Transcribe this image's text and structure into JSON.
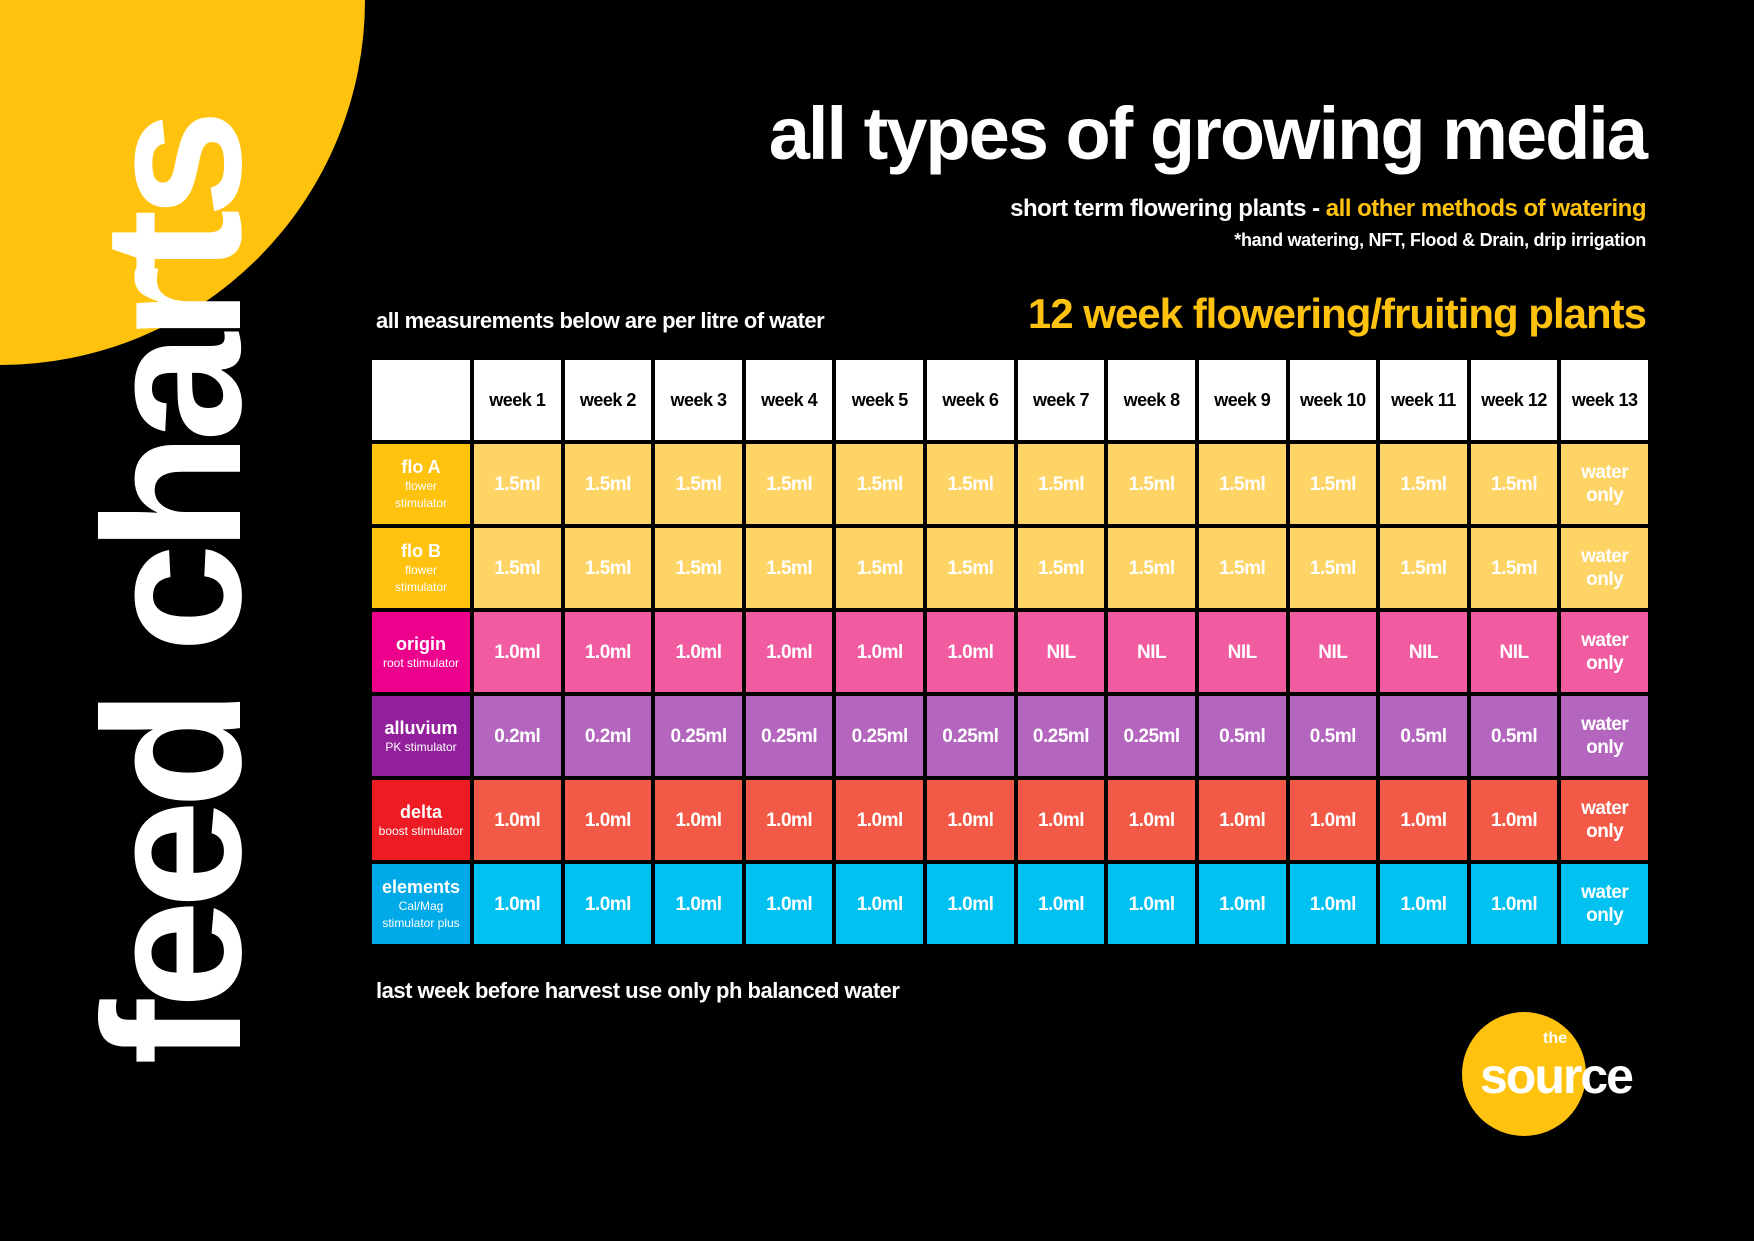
{
  "side_title": "feed charts",
  "title": "all types of growing media",
  "subtitle": {
    "main": "short term flowering plants - ",
    "highlight": "all other methods of watering"
  },
  "note": "*hand watering, NFT, Flood & Drain, drip irrigation",
  "measurement_note": "all measurements below are per litre of water",
  "program_title": "12 week flowering/fruiting plants",
  "table": {
    "headers": [
      "",
      "week 1",
      "week 2",
      "week 3",
      "week 4",
      "week 5",
      "week 6",
      "week 7",
      "week 8",
      "week 9",
      "week 10",
      "week 11",
      "week 12",
      "week 13"
    ],
    "rows": [
      {
        "name": "flo A",
        "desc": "flower stimulator",
        "label_color": "#FFC20E",
        "cell_color": "#FFD466",
        "values": [
          "1.5ml",
          "1.5ml",
          "1.5ml",
          "1.5ml",
          "1.5ml",
          "1.5ml",
          "1.5ml",
          "1.5ml",
          "1.5ml",
          "1.5ml",
          "1.5ml",
          "1.5ml",
          "water only"
        ]
      },
      {
        "name": "flo B",
        "desc": "flower stimulator",
        "label_color": "#FFC20E",
        "cell_color": "#FFD466",
        "values": [
          "1.5ml",
          "1.5ml",
          "1.5ml",
          "1.5ml",
          "1.5ml",
          "1.5ml",
          "1.5ml",
          "1.5ml",
          "1.5ml",
          "1.5ml",
          "1.5ml",
          "1.5ml",
          "water only"
        ]
      },
      {
        "name": "origin",
        "desc": "root stimulator",
        "label_color": "#EC008C",
        "cell_color": "#F15BA0",
        "values": [
          "1.0ml",
          "1.0ml",
          "1.0ml",
          "1.0ml",
          "1.0ml",
          "1.0ml",
          "NIL",
          "NIL",
          "NIL",
          "NIL",
          "NIL",
          "NIL",
          "water only"
        ]
      },
      {
        "name": "alluvium",
        "desc": "PK stimulator",
        "label_color": "#92209C",
        "cell_color": "#B465BE",
        "values": [
          "0.2ml",
          "0.2ml",
          "0.25ml",
          "0.25ml",
          "0.25ml",
          "0.25ml",
          "0.25ml",
          "0.25ml",
          "0.5ml",
          "0.5ml",
          "0.5ml",
          "0.5ml",
          "water only"
        ]
      },
      {
        "name": "delta",
        "desc": "boost stimulator",
        "label_color": "#ED1C24",
        "cell_color": "#F25A47",
        "values": [
          "1.0ml",
          "1.0ml",
          "1.0ml",
          "1.0ml",
          "1.0ml",
          "1.0ml",
          "1.0ml",
          "1.0ml",
          "1.0ml",
          "1.0ml",
          "1.0ml",
          "1.0ml",
          "water only"
        ]
      },
      {
        "name": "elements",
        "desc": "Cal/Mag stimulator plus",
        "label_color": "#00A9E8",
        "cell_color": "#00C1F0",
        "values": [
          "1.0ml",
          "1.0ml",
          "1.0ml",
          "1.0ml",
          "1.0ml",
          "1.0ml",
          "1.0ml",
          "1.0ml",
          "1.0ml",
          "1.0ml",
          "1.0ml",
          "1.0ml",
          "water only"
        ]
      }
    ]
  },
  "footer": "last week before harvest use only ph balanced water",
  "logo": {
    "small": "the",
    "word": "source"
  },
  "colors": {
    "accent": "#FFC20E",
    "background": "#000000"
  }
}
